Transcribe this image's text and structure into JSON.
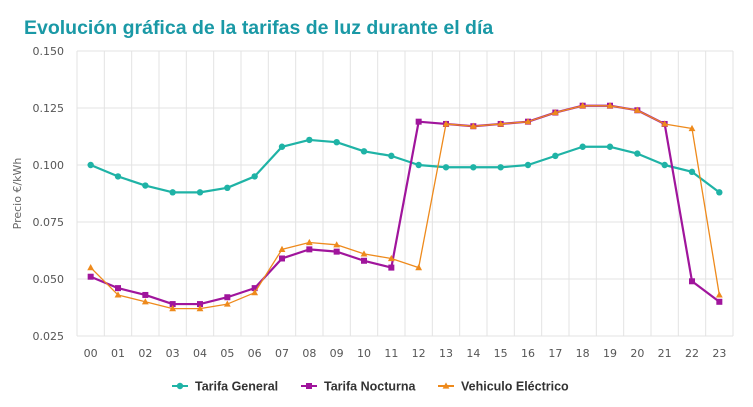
{
  "title": "Evolución gráfica de la tarifas de luz durante el día",
  "chart_data": {
    "type": "line",
    "ylabel": "Precio €/kWh",
    "xlabel": "",
    "ylim": [
      0.025,
      0.15
    ],
    "yticks": [
      "0.150",
      "0.125",
      "0.100",
      "0.075",
      "0.050",
      "0.025"
    ],
    "grid": true,
    "legend_position": "bottom",
    "categories": [
      "00",
      "01",
      "02",
      "03",
      "04",
      "05",
      "06",
      "07",
      "08",
      "09",
      "10",
      "11",
      "12",
      "13",
      "14",
      "15",
      "16",
      "17",
      "18",
      "19",
      "20",
      "21",
      "22",
      "23"
    ],
    "series": [
      {
        "name": "Tarifa General",
        "color": "#1fb3a6",
        "marker": "circle",
        "values": [
          0.1,
          0.095,
          0.091,
          0.088,
          0.088,
          0.09,
          0.095,
          0.108,
          0.111,
          0.11,
          0.106,
          0.104,
          0.1,
          0.099,
          0.099,
          0.099,
          0.1,
          0.104,
          0.108,
          0.108,
          0.105,
          0.1,
          0.097,
          0.088
        ]
      },
      {
        "name": "Tarifa Nocturna",
        "color": "#a0159c",
        "marker": "square",
        "values": [
          0.051,
          0.046,
          0.043,
          0.039,
          0.039,
          0.042,
          0.046,
          0.059,
          0.063,
          0.062,
          0.058,
          0.055,
          0.119,
          0.118,
          0.117,
          0.118,
          0.119,
          0.123,
          0.126,
          0.126,
          0.124,
          0.118,
          0.049,
          0.04
        ]
      },
      {
        "name": "Vehiculo Eléctrico",
        "color": "#ee8a1c",
        "marker": "triangle",
        "values": [
          0.055,
          0.043,
          0.04,
          0.037,
          0.037,
          0.039,
          0.044,
          0.063,
          0.066,
          0.065,
          0.061,
          0.059,
          0.055,
          0.118,
          0.117,
          0.118,
          0.119,
          0.123,
          0.126,
          0.126,
          0.124,
          0.118,
          0.116,
          0.043
        ]
      }
    ]
  }
}
